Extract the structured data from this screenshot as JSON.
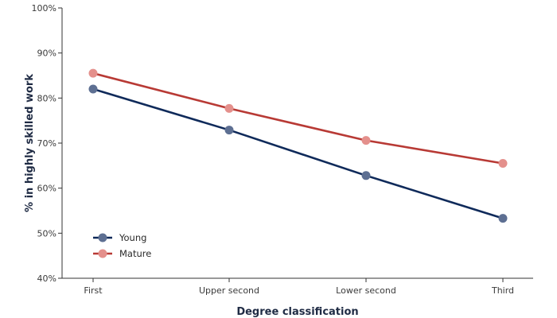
{
  "chart_data": {
    "type": "line",
    "categories": [
      "First",
      "Upper second",
      "Lower second",
      "Third"
    ],
    "series": [
      {
        "name": "Young",
        "values": [
          82.0,
          72.9,
          62.8,
          53.3
        ],
        "color": "#0f2a5a",
        "marker_color": "#5d6f92"
      },
      {
        "name": "Mature",
        "values": [
          85.5,
          77.7,
          70.6,
          65.5
        ],
        "color": "#b83a35",
        "marker_color": "#e4908c"
      }
    ],
    "xlabel": "Degree classification",
    "ylabel": "% in highly skilled work",
    "ylim": [
      40,
      100
    ],
    "yticks": [
      40,
      50,
      60,
      70,
      80,
      90,
      100
    ],
    "ytick_suffix": "%",
    "grid": false,
    "legend_position": "bottom-left"
  }
}
